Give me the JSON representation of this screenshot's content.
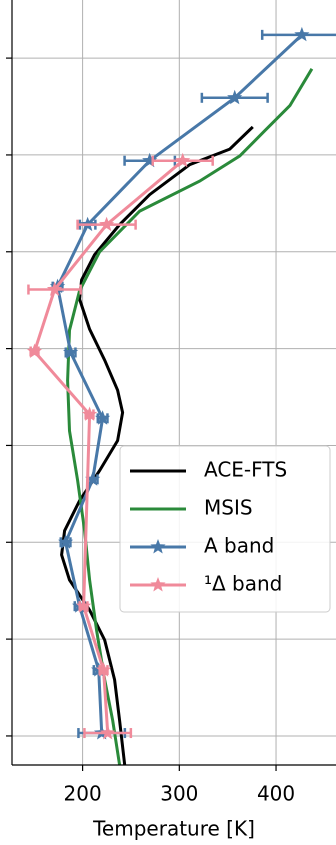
{
  "chart_data": {
    "type": "line",
    "xlabel": "Temperature [K]",
    "xlim": [
      127,
      462
    ],
    "xticks": [
      200,
      300,
      400
    ],
    "ylim": [
      -0.3,
      7.6
    ],
    "yticks": [
      0,
      1,
      2,
      3,
      4,
      5,
      6,
      7
    ],
    "grid": true,
    "legend": "lower right",
    "series": [
      {
        "name": "ACE-FTS",
        "color": "#000000",
        "marker": "none",
        "x": [
          376.0,
          352.2,
          310.8,
          269.4,
          238.3,
          212.4,
          199.0,
          196.9,
          207.2,
          222.8,
          236.2,
          241.4,
          236.2,
          217.6,
          196.9,
          181.4,
          178.3,
          186.5,
          207.2,
          222.8,
          233.1,
          238.3,
          243.5
        ],
        "y": [
          6.29,
          6.06,
          5.9,
          5.59,
          5.28,
          4.97,
          4.71,
          4.51,
          4.2,
          3.88,
          3.57,
          3.34,
          3.05,
          2.74,
          2.43,
          2.12,
          1.87,
          1.61,
          1.3,
          0.99,
          0.58,
          0.16,
          -0.3
        ]
      },
      {
        "name": "MSIS",
        "color": "#2a8a3a",
        "marker": "none",
        "x": [
          437.1,
          414.3,
          388.4,
          362.5,
          321.1,
          259.0,
          217.6,
          196.9,
          186.5,
          184.5,
          186.5,
          194.8,
          202.1,
          207.2,
          214.5,
          222.8,
          231.1,
          238.3
        ],
        "y": [
          6.89,
          6.51,
          6.25,
          5.99,
          5.73,
          5.42,
          5.0,
          4.6,
          4.19,
          3.67,
          3.15,
          2.64,
          2.12,
          1.61,
          1.09,
          0.58,
          0.16,
          -0.3
        ]
      },
      {
        "name": "A band",
        "color": "#4878a8",
        "marker": "star",
        "x": [
          426.7,
          357.3,
          269.4,
          205.2,
          174.1,
          187.6,
          220.7,
          210.4,
          182.4,
          196.9,
          216.6,
          219.7
        ],
        "y": [
          7.24,
          6.59,
          5.94,
          5.28,
          4.64,
          3.96,
          3.28,
          2.65,
          2.0,
          1.34,
          0.68,
          0.03
        ],
        "xerr": [
          41,
          34,
          26,
          8,
          5,
          5,
          5,
          5,
          5,
          5,
          5,
          24
        ]
      },
      {
        "name": "¹Δ band",
        "color": "#f08a9a",
        "marker": "star",
        "x": [
          303.5,
          224.8,
          171.0,
          150.3,
          207.2,
          201.0,
          221.7,
          225.9
        ],
        "y": [
          5.94,
          5.28,
          4.61,
          3.97,
          3.32,
          1.34,
          0.68,
          0.03
        ],
        "xerr": [
          31,
          30,
          27,
          4,
          4,
          4,
          4,
          24
        ]
      }
    ]
  }
}
